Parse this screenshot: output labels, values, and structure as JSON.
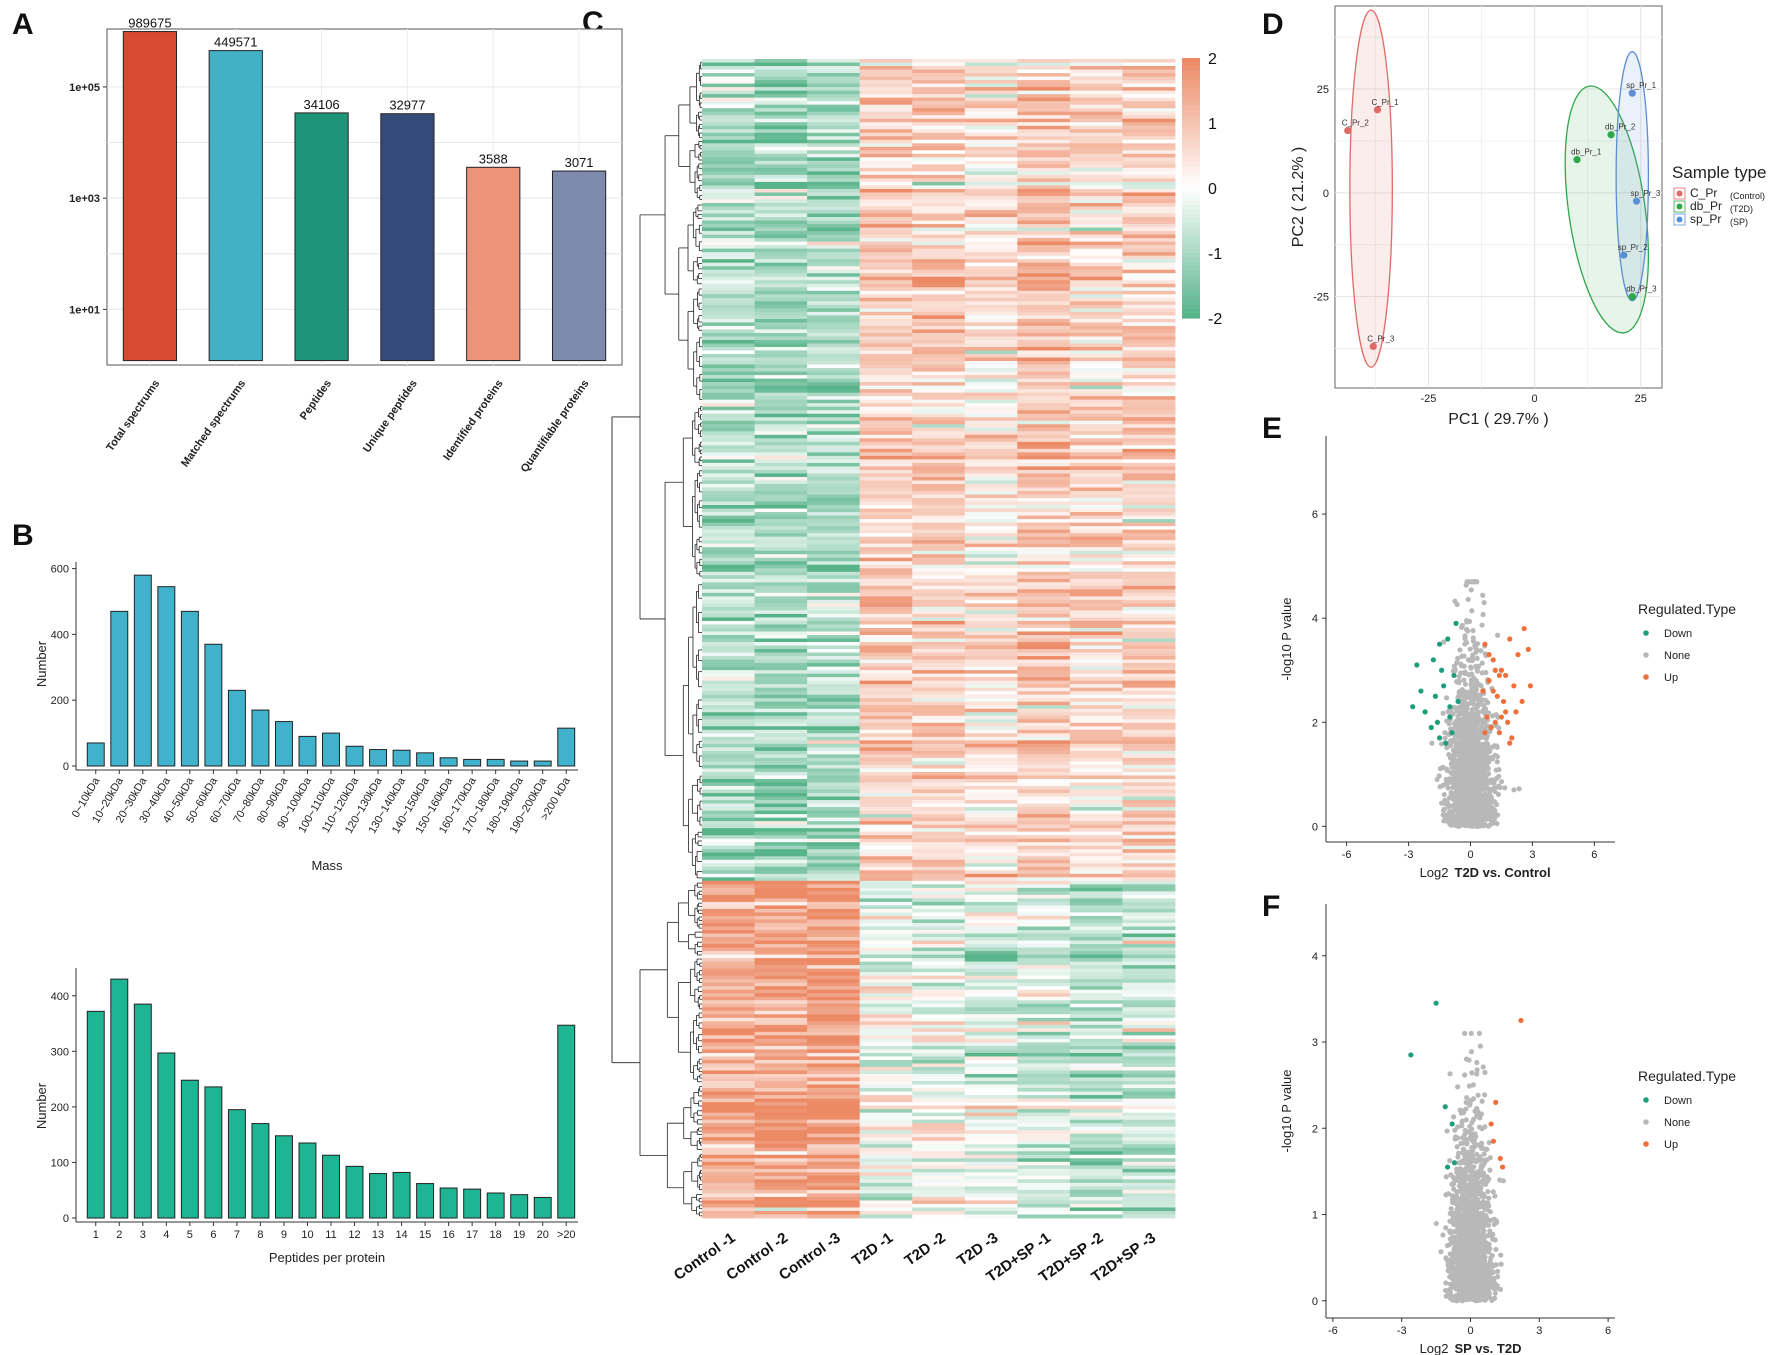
{
  "panels": {
    "A": {
      "label": "A",
      "chart_data": {
        "type": "bar",
        "scale": "log10",
        "categories": [
          "Total spectrums",
          "Matched spectrums",
          "Peptides",
          "Unique peptides",
          "Identified proteins",
          "Quantifiable proteins"
        ],
        "values": [
          989675,
          449571,
          34106,
          32977,
          3588,
          3071
        ],
        "value_labels": [
          "989675",
          "449571",
          "34106",
          "32977",
          "3588",
          "3071"
        ],
        "colors": [
          "#d94a32",
          "#42b1c6",
          "#1e9478",
          "#354b7c",
          "#ec937a",
          "#7e8aab"
        ],
        "yticks": [
          10,
          1000,
          100000
        ],
        "ytick_labels": [
          "1e+01",
          "1e+03",
          "1e+05"
        ],
        "ylim": [
          1,
          1100000
        ]
      }
    },
    "B": {
      "label": "B",
      "charts": [
        {
          "chart_data": {
            "type": "bar",
            "xlabel": "Mass",
            "ylabel": "Number",
            "categories": [
              "0~10kDa",
              "10~20kDa",
              "20~30kDa",
              "30~40kDa",
              "40~50kDa",
              "50~60kDa",
              "60~70kDa",
              "70~80kDa",
              "80~90kDa",
              "90~100kDa",
              "100~110kDa",
              "110~120kDa",
              "120~130kDa",
              "130~140kDa",
              "140~150kDa",
              "150~160kDa",
              "160~170kDa",
              "170~180kDa",
              "180~190kDa",
              "190~200kDa",
              ">200 kDa"
            ],
            "values": [
              70,
              470,
              580,
              545,
              470,
              370,
              230,
              170,
              135,
              90,
              100,
              60,
              50,
              48,
              40,
              25,
              20,
              20,
              15,
              15,
              115
            ],
            "ylim": [
              0,
              620
            ],
            "yticks": [
              0,
              200,
              400,
              600
            ],
            "color": "#41b2cc"
          }
        },
        {
          "chart_data": {
            "type": "bar",
            "xlabel": "Peptides per protein",
            "ylabel": "Number",
            "categories": [
              "1",
              "2",
              "3",
              "4",
              "5",
              "6",
              "7",
              "8",
              "9",
              "10",
              "11",
              "12",
              "13",
              "14",
              "15",
              "16",
              "17",
              "18",
              "19",
              "20",
              ">20"
            ],
            "values": [
              372,
              430,
              385,
              297,
              248,
              236,
              195,
              170,
              148,
              135,
              113,
              93,
              80,
              82,
              62,
              54,
              52,
              45,
              42,
              37,
              347
            ],
            "ylim": [
              0,
              450
            ],
            "yticks": [
              0,
              100,
              200,
              300,
              400
            ],
            "color": "#1db594"
          }
        }
      ]
    },
    "C": {
      "label": "C",
      "chart_data": {
        "type": "heatmap",
        "columns": [
          "Control -1",
          "Control -2",
          "Control -3",
          "T2D -1",
          "T2D -2",
          "T2D -3",
          "T2D+SP -1",
          "T2D+SP -2",
          "T2D+SP -3"
        ],
        "column_means_upper_cluster": [
          -0.9,
          -1.1,
          -1.0,
          0.8,
          0.7,
          0.4,
          0.9,
          0.6,
          0.7
        ],
        "column_means_lower_cluster": [
          1.4,
          1.5,
          1.6,
          -0.3,
          -0.2,
          -0.4,
          -0.6,
          -0.8,
          -0.7
        ],
        "upper_cluster_fraction": 0.71,
        "n_rows": 330,
        "color_range": [
          -2,
          2
        ],
        "legend_ticks": [
          "2",
          "1",
          "0",
          "-1",
          "-2"
        ],
        "low_color": "#56b38a",
        "mid_color": "#ffffff",
        "high_color": "#ec8a66"
      }
    },
    "D": {
      "label": "D",
      "chart_data": {
        "type": "scatter",
        "xlabel": "PC1 ( 29.7% )",
        "ylabel": "PC2 ( 21.2% )",
        "xlim": [
          -47,
          30
        ],
        "ylim": [
          -47,
          45
        ],
        "xticks": [
          -25,
          0,
          25
        ],
        "xtick_labels": [
          "-25",
          "0",
          "25"
        ],
        "yticks": [
          -25,
          0,
          25
        ],
        "ytick_labels": [
          "-25",
          "0",
          "25"
        ],
        "legend_title": "Sample type",
        "groups": [
          {
            "name": "C_Pr",
            "note": "(Control)",
            "color": "#e06a66",
            "points": [
              {
                "label": "C_Pr_1",
                "x": -37,
                "y": 20
              },
              {
                "label": "C_Pr_2",
                "x": -44,
                "y": 15
              },
              {
                "label": "C_Pr_3",
                "x": -38,
                "y": -37
              }
            ]
          },
          {
            "name": "db_Pr",
            "note": "(T2D)",
            "color": "#2fa84a",
            "points": [
              {
                "label": "db_Pr_1",
                "x": 10,
                "y": 8
              },
              {
                "label": "db_Pr_2",
                "x": 18,
                "y": 14
              },
              {
                "label": "db_Pr_3",
                "x": 23,
                "y": -25
              }
            ]
          },
          {
            "name": "sp_Pr",
            "note": "(SP)",
            "color": "#5b8fd4",
            "points": [
              {
                "label": "sp_Pr_1",
                "x": 23,
                "y": 24
              },
              {
                "label": "sp_Pr_3",
                "x": 24,
                "y": -2
              },
              {
                "label": "sp_Pr_2",
                "x": 21,
                "y": -15
              }
            ]
          }
        ]
      }
    },
    "E": {
      "label": "E",
      "chart_data": {
        "type": "scatter",
        "title": "T2D vs. Control",
        "xlabel_prefix": "Log2",
        "xlabel": "T2D vs. Control",
        "ylabel": "-log10 P value",
        "xlim": [
          -7,
          7
        ],
        "ylim": [
          -0.3,
          7.5
        ],
        "xticks": [
          -6,
          -3,
          0,
          3,
          6
        ],
        "xtick_labels": [
          "-6",
          "-3",
          "0",
          "3",
          "6"
        ],
        "yticks": [
          0,
          2,
          4,
          6
        ],
        "ytick_labels": [
          "0",
          "2",
          "4",
          "6"
        ],
        "legend_title": "Regulated.Type",
        "legend": [
          {
            "name": "Down",
            "color": "#1f9e7c"
          },
          {
            "name": "None",
            "color": "#b8b8b8"
          },
          {
            "name": "Up",
            "color": "#f0703c"
          }
        ],
        "n_points_approx": 1500,
        "down_points": [
          [
            -2.6,
            3.1
          ],
          [
            -1.8,
            3.2
          ],
          [
            -1.7,
            2.5
          ],
          [
            -1.5,
            3.5
          ],
          [
            -1.3,
            2.7
          ],
          [
            -1.1,
            3.6
          ],
          [
            -1.0,
            2.3
          ],
          [
            -0.9,
            1.8
          ],
          [
            -2.2,
            2.2
          ],
          [
            -2.8,
            2.3
          ],
          [
            -1.6,
            2.0
          ],
          [
            -0.8,
            2.9
          ],
          [
            -1.2,
            1.6
          ],
          [
            -0.7,
            3.9
          ],
          [
            -1.9,
            1.9
          ],
          [
            -1.4,
            3.0
          ],
          [
            -1.0,
            2.1
          ],
          [
            -0.6,
            2.4
          ],
          [
            -2.4,
            2.6
          ],
          [
            -1.5,
            1.7
          ]
        ],
        "up_points": [
          [
            0.7,
            3.5
          ],
          [
            0.9,
            2.8
          ],
          [
            1.1,
            3.2
          ],
          [
            1.3,
            2.5
          ],
          [
            1.5,
            3.0
          ],
          [
            1.7,
            2.2
          ],
          [
            1.9,
            3.6
          ],
          [
            2.1,
            2.7
          ],
          [
            2.3,
            3.3
          ],
          [
            2.6,
            3.8
          ],
          [
            2.9,
            2.7
          ],
          [
            0.8,
            2.1
          ],
          [
            1.0,
            1.9
          ],
          [
            1.2,
            2.0
          ],
          [
            1.4,
            1.8
          ],
          [
            1.6,
            2.4
          ],
          [
            1.8,
            2.0
          ],
          [
            2.0,
            1.7
          ],
          [
            0.6,
            2.6
          ],
          [
            2.2,
            2.2
          ],
          [
            1.2,
            3.0
          ],
          [
            0.9,
            3.3
          ],
          [
            1.4,
            2.9
          ],
          [
            1.7,
            2.9
          ],
          [
            2.5,
            2.4
          ],
          [
            1.1,
            2.6
          ],
          [
            0.7,
            1.8
          ],
          [
            1.5,
            2.1
          ],
          [
            2.8,
            3.4
          ],
          [
            1.9,
            1.6
          ]
        ]
      }
    },
    "F": {
      "label": "F",
      "chart_data": {
        "type": "scatter",
        "title": "SP vs. T2D",
        "xlabel_prefix": "Log2",
        "xlabel": "SP vs. T2D",
        "ylabel": "-log10 P value",
        "xlim": [
          -6.3,
          6.3
        ],
        "ylim": [
          -0.2,
          4.6
        ],
        "xticks": [
          -6,
          -3,
          0,
          3,
          6
        ],
        "xtick_labels": [
          "-6",
          "-3",
          "0",
          "3",
          "6"
        ],
        "yticks": [
          0,
          1,
          2,
          3,
          4
        ],
        "ytick_labels": [
          "0",
          "1",
          "2",
          "3",
          "4"
        ],
        "legend_title": "Regulated.Type",
        "legend": [
          {
            "name": "Down",
            "color": "#1f9e7c"
          },
          {
            "name": "None",
            "color": "#b8b8b8"
          },
          {
            "name": "Up",
            "color": "#f0703c"
          }
        ],
        "n_points_approx": 1500,
        "down_points": [
          [
            -1.5,
            3.45
          ],
          [
            -2.6,
            2.85
          ],
          [
            -1.1,
            2.25
          ],
          [
            -0.8,
            2.05
          ],
          [
            -0.7,
            1.6
          ],
          [
            -1.0,
            1.55
          ]
        ],
        "up_points": [
          [
            2.2,
            3.25
          ],
          [
            1.1,
            2.3
          ],
          [
            0.9,
            2.05
          ],
          [
            1.0,
            1.85
          ],
          [
            1.3,
            1.65
          ],
          [
            1.4,
            1.55
          ]
        ]
      }
    }
  }
}
